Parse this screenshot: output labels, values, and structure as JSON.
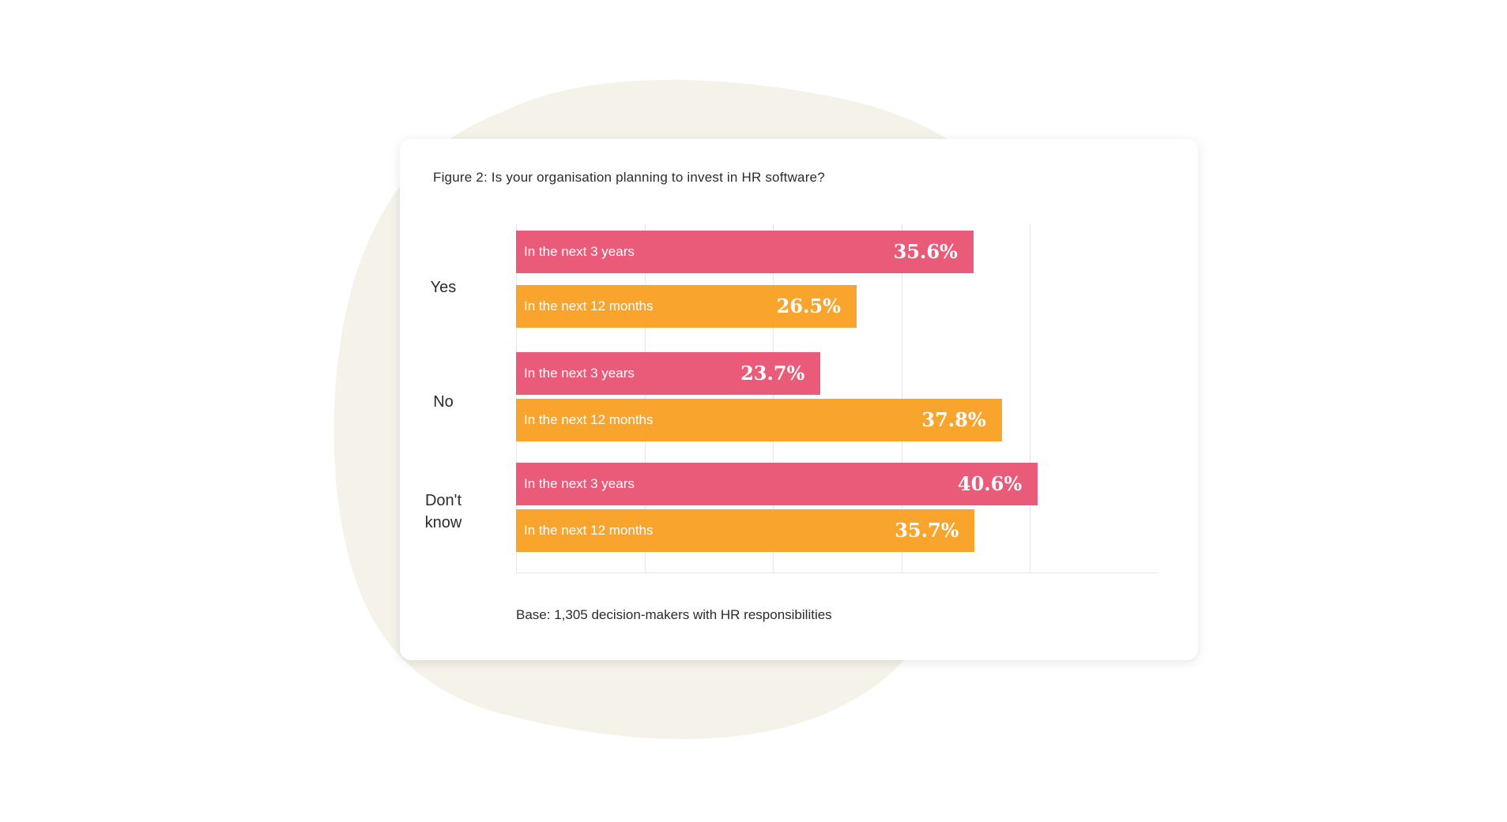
{
  "chart_data": {
    "type": "bar",
    "orientation": "horizontal",
    "title": "Figure 2: Is your organisation planning to invest in HR software?",
    "categories": [
      "Yes",
      "No",
      "Don't know"
    ],
    "series": [
      {
        "name": "In the next 3 years",
        "values": [
          35.6,
          23.7,
          40.6
        ],
        "labels": [
          "35.6%",
          "23.7%",
          "40.6%"
        ]
      },
      {
        "name": "In the next 12 months",
        "values": [
          26.5,
          37.8,
          35.7
        ],
        "labels": [
          "26.5%",
          "37.8%",
          "35.7%"
        ]
      }
    ],
    "xlim": [
      0,
      50
    ],
    "grid": true,
    "legend": "none",
    "note": "Base: 1,305 decision-makers with HR responsibilities",
    "colors": {
      "In the next 3 years": "#EA5B79",
      "In the next 12 months": "#F8A42D"
    }
  },
  "style": {
    "background_blob": "#F4F2E9",
    "grid_color": "#E6E6E6"
  }
}
